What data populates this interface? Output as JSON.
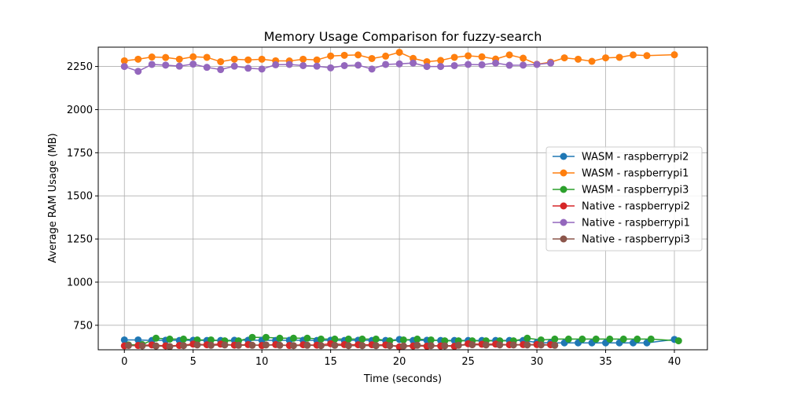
{
  "chart_data": {
    "type": "line",
    "title": "Memory Usage Comparison for fuzzy-search",
    "xlabel": "Time (seconds)",
    "ylabel": "Average RAM Usage (MB)",
    "xlim": [
      -1.9,
      42.4
    ],
    "ylim": [
      608,
      2362
    ],
    "xticks": [
      0,
      5,
      10,
      15,
      20,
      25,
      30,
      35,
      40
    ],
    "yticks": [
      750,
      1000,
      1250,
      1500,
      1750,
      2000,
      2250
    ],
    "grid": true,
    "legend_position": "center-right",
    "series": [
      {
        "name": "WASM - raspberrypi2",
        "color": "#1f77b4",
        "x": [
          0,
          1,
          2,
          3,
          4,
          5,
          6,
          7,
          8,
          9,
          10,
          11,
          12,
          13,
          14,
          15,
          16,
          17,
          18,
          19,
          20,
          21,
          22,
          23,
          24,
          25,
          26,
          27,
          28,
          29,
          30,
          31,
          32,
          33,
          34,
          35,
          36,
          37,
          38,
          40
        ],
        "y": [
          665,
          665,
          662,
          663,
          662,
          663,
          662,
          662,
          663,
          663,
          663,
          662,
          663,
          663,
          662,
          663,
          662,
          663,
          662,
          662,
          668,
          662,
          663,
          662,
          662,
          662,
          662,
          662,
          662,
          662,
          650,
          648,
          648,
          648,
          648,
          648,
          648,
          648,
          648,
          668
        ]
      },
      {
        "name": "WASM - raspberrypi1",
        "color": "#ff7f0e",
        "x": [
          0,
          1,
          2,
          3,
          4,
          5,
          6,
          7,
          8,
          9,
          10,
          11,
          12,
          13,
          14,
          15,
          16,
          17,
          18,
          19,
          20,
          21,
          22,
          23,
          24,
          25,
          26,
          27,
          28,
          29,
          30,
          31,
          32,
          33,
          34,
          35,
          36,
          37,
          38,
          40
        ],
        "y": [
          2283,
          2292,
          2305,
          2302,
          2292,
          2306,
          2303,
          2278,
          2292,
          2288,
          2292,
          2283,
          2282,
          2292,
          2288,
          2311,
          2315,
          2317,
          2296,
          2310,
          2332,
          2297,
          2278,
          2285,
          2303,
          2312,
          2306,
          2293,
          2317,
          2298,
          2263,
          2275,
          2300,
          2292,
          2280,
          2300,
          2303,
          2317,
          2313,
          2318
        ]
      },
      {
        "name": "WASM - raspberrypi3",
        "color": "#2ca02c",
        "x": [
          0.3,
          1.3,
          2.3,
          3.3,
          4.3,
          5.3,
          6.3,
          7.3,
          8.3,
          9.3,
          10.3,
          11.3,
          12.3,
          13.3,
          14.3,
          15.3,
          16.3,
          17.3,
          18.3,
          19.3,
          20.3,
          21.3,
          22.3,
          23.3,
          24.3,
          25.3,
          26.3,
          27.3,
          28.3,
          29.3,
          30.3,
          31.3,
          32.3,
          33.3,
          34.3,
          35.3,
          36.3,
          37.3,
          38.3,
          40.3
        ],
        "y": [
          636,
          638,
          675,
          670,
          670,
          665,
          665,
          660,
          660,
          680,
          680,
          675,
          675,
          675,
          670,
          670,
          670,
          670,
          670,
          660,
          665,
          670,
          665,
          660,
          660,
          660,
          660,
          660,
          660,
          675,
          665,
          670,
          670,
          670,
          670,
          670,
          670,
          670,
          670,
          660
        ]
      },
      {
        "name": "Native - raspberrypi2",
        "color": "#d62728",
        "x": [
          0,
          1,
          2,
          3,
          4,
          5,
          6,
          7,
          8,
          9,
          10,
          11,
          12,
          13,
          14,
          15,
          16,
          17,
          18,
          19,
          20,
          21,
          22,
          23,
          24,
          25,
          26,
          27,
          28,
          29,
          30,
          31
        ],
        "y": [
          631,
          633,
          636,
          631,
          633,
          641,
          637,
          641,
          635,
          638,
          633,
          638,
          633,
          637,
          635,
          643,
          638,
          637,
          637,
          636,
          625,
          630,
          629,
          630,
          628,
          643,
          640,
          641,
          637,
          638,
          638,
          637
        ]
      },
      {
        "name": "Native - raspberrypi1",
        "color": "#9467bd",
        "x": [
          0,
          1,
          2,
          3,
          4,
          5,
          6,
          7,
          8,
          9,
          10,
          11,
          12,
          13,
          14,
          15,
          16,
          17,
          18,
          19,
          20,
          21,
          22,
          23,
          24,
          25,
          26,
          27,
          28,
          29,
          30,
          31
        ],
        "y": [
          2250,
          2222,
          2262,
          2258,
          2252,
          2264,
          2245,
          2232,
          2252,
          2240,
          2235,
          2260,
          2262,
          2255,
          2252,
          2242,
          2255,
          2258,
          2235,
          2262,
          2265,
          2270,
          2250,
          2250,
          2255,
          2262,
          2260,
          2270,
          2257,
          2258,
          2262,
          2270
        ]
      },
      {
        "name": "Native - raspberrypi3",
        "color": "#8c564b",
        "x": [
          0.3,
          1.3,
          2.3,
          3.3,
          4.3,
          5.3,
          6.3,
          7.3,
          8.3,
          9.3,
          10.3,
          11.3,
          12.3,
          13.3,
          14.3,
          15.3,
          16.3,
          17.3,
          18.3,
          19.3,
          20.3,
          21.3,
          22.3,
          23.3,
          24.3,
          25.3,
          26.3,
          27.3,
          28.3,
          29.3,
          30.3,
          31.3
        ],
        "y": [
          633,
          631,
          630,
          627,
          632,
          636,
          634,
          636,
          634,
          634,
          636,
          634,
          632,
          634,
          632,
          634,
          632,
          632,
          632,
          632,
          630,
          634,
          632,
          631,
          634,
          637,
          636,
          636,
          636,
          636,
          636,
          634
        ]
      }
    ]
  }
}
